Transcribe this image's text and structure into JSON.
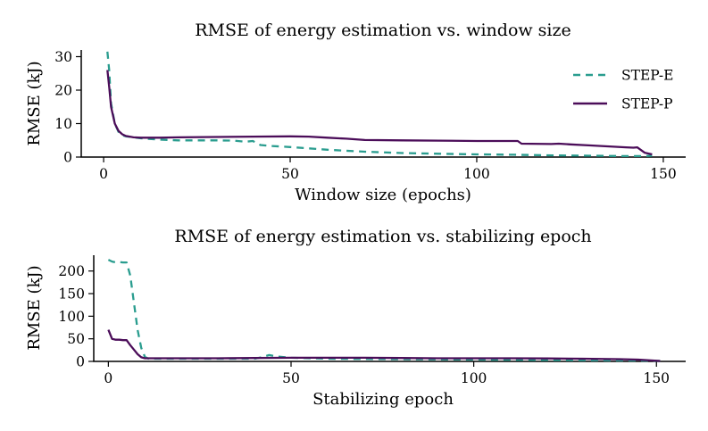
{
  "colors": {
    "step_e": "#2a9d8f",
    "step_p": "#4b0d59"
  },
  "chart_data": [
    {
      "type": "line",
      "title": "RMSE of energy estimation vs. window size",
      "xlabel": "Window size (epochs)",
      "ylabel": "RMSE (kJ)",
      "xlim": [
        -6,
        156
      ],
      "ylim": [
        0,
        32
      ],
      "xticks": [
        0,
        50,
        100,
        150
      ],
      "yticks": [
        0,
        10,
        20,
        30
      ],
      "legend": {
        "placement": "top-right",
        "entries": [
          "STEP-E",
          "STEP-P"
        ]
      },
      "series": [
        {
          "name": "STEP-E",
          "style": "dashed",
          "x": [
            1,
            1.5,
            2,
            3,
            4,
            5,
            6,
            8,
            10,
            15,
            20,
            30,
            35,
            38,
            40,
            42,
            45,
            50,
            60,
            70,
            80,
            90,
            100,
            110,
            120,
            130,
            140,
            145,
            147
          ],
          "y": [
            31.5,
            26,
            16,
            10,
            7.5,
            6.5,
            6.2,
            5.9,
            5.6,
            5.2,
            5.0,
            5.0,
            4.9,
            4.6,
            4.8,
            3.6,
            3.3,
            3.0,
            2.2,
            1.6,
            1.2,
            1.0,
            0.8,
            0.7,
            0.5,
            0.4,
            0.3,
            0.3,
            0.4
          ]
        },
        {
          "name": "STEP-P",
          "style": "solid",
          "x": [
            1,
            1.5,
            2,
            3,
            4,
            5,
            6,
            8,
            10,
            15,
            20,
            30,
            40,
            50,
            55,
            60,
            65,
            70,
            80,
            90,
            100,
            111,
            112,
            120,
            122,
            125,
            130,
            135,
            140,
            142,
            143,
            145,
            147
          ],
          "y": [
            26,
            21,
            15,
            10,
            7.8,
            6.8,
            6.3,
            5.9,
            5.8,
            5.8,
            5.9,
            6.0,
            6.1,
            6.2,
            6.1,
            5.8,
            5.5,
            5.1,
            5.0,
            4.9,
            4.8,
            4.8,
            4.0,
            3.9,
            4.0,
            3.8,
            3.5,
            3.2,
            2.9,
            2.8,
            2.9,
            1.3,
            0.8
          ]
        }
      ]
    },
    {
      "type": "line",
      "title": "RMSE of energy estimation vs. stabilizing epoch",
      "xlabel": "Stabilizing epoch",
      "ylabel": "RMSE (kJ)",
      "xlim": [
        -4,
        158
      ],
      "ylim": [
        0,
        235
      ],
      "xticks": [
        0,
        50,
        100,
        150
      ],
      "yticks": [
        0,
        50,
        100,
        150,
        200
      ],
      "series": [
        {
          "name": "STEP-E",
          "style": "dashed",
          "x": [
            0,
            1,
            2,
            3,
            4,
            5,
            6,
            7,
            8,
            9,
            10,
            11,
            15,
            20,
            30,
            40,
            42,
            44,
            46,
            50,
            60,
            80,
            100,
            120,
            140,
            145,
            151
          ],
          "y": [
            225,
            221,
            219,
            220,
            219,
            219,
            190,
            130,
            70,
            30,
            10,
            6,
            6,
            6,
            6,
            6,
            9,
            14,
            11,
            8,
            6,
            5,
            4,
            3,
            2,
            2,
            1
          ]
        },
        {
          "name": "STEP-P",
          "style": "solid",
          "x": [
            0,
            1,
            2,
            3,
            4,
            5,
            6,
            7,
            8,
            9,
            10,
            11,
            15,
            20,
            30,
            40,
            50,
            60,
            70,
            80,
            90,
            100,
            110,
            120,
            130,
            140,
            145,
            151
          ],
          "y": [
            70,
            50,
            48,
            48,
            47,
            47,
            36,
            26,
            16,
            9,
            7,
            7,
            7,
            7,
            7,
            7.5,
            8,
            8,
            8,
            7.5,
            7,
            7,
            7,
            6.5,
            6,
            5,
            4,
            1
          ]
        }
      ]
    }
  ]
}
